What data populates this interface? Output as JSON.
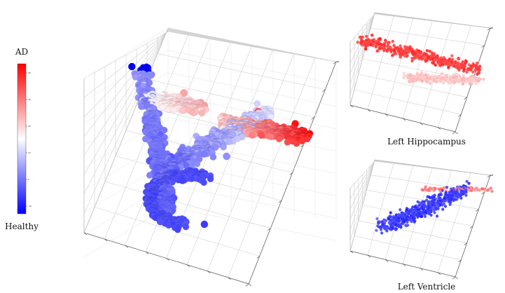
{
  "colorbar": {
    "top_label": "AD",
    "bottom_label": "Healthy",
    "tick_labels": [
      "40",
      "30",
      "20",
      "10",
      "0",
      "-10"
    ],
    "colors": {
      "high": "#ff0000",
      "mid": "#ffffff",
      "low": "#0000ff"
    }
  },
  "panels": {
    "main": {
      "caption": ""
    },
    "top_right": {
      "caption": "Left Hippocampus"
    },
    "bottom_right": {
      "caption": "Left Ventricle"
    }
  },
  "chart_data": [
    {
      "type": "scatter",
      "projection": "3d",
      "title": "",
      "grid": true,
      "colormap": "bwr",
      "value_range": [
        -15,
        45
      ],
      "series": [
        {
          "region": "curved cluster",
          "points": [
            {
              "x": 0.05,
              "y": 0.0,
              "z": 0.95,
              "value": -15
            },
            {
              "x": 0.1,
              "y": 0.05,
              "z": 0.85,
              "value": 8
            },
            {
              "x": 0.2,
              "y": 0.08,
              "z": 0.8,
              "value": 20
            },
            {
              "x": 0.3,
              "y": 0.1,
              "z": 0.82,
              "value": 26
            },
            {
              "x": 0.1,
              "y": 0.1,
              "z": 0.6,
              "value": -2
            },
            {
              "x": 0.1,
              "y": 0.15,
              "z": 0.4,
              "value": -5
            },
            {
              "x": 0.2,
              "y": 0.25,
              "z": 0.2,
              "value": -6
            },
            {
              "x": 0.35,
              "y": 0.3,
              "z": 0.05,
              "value": -8
            },
            {
              "x": 0.5,
              "y": 0.2,
              "z": 0.45,
              "value": 2
            },
            {
              "x": 0.7,
              "y": 0.1,
              "z": 0.7,
              "value": 34
            },
            {
              "x": 0.9,
              "y": 0.1,
              "z": 0.62,
              "value": 43
            }
          ]
        }
      ]
    },
    {
      "type": "scatter",
      "projection": "3d",
      "title": "Left Hippocampus",
      "grid": true,
      "colormap": "bwr",
      "series": [
        {
          "region": "upper band",
          "mean_value": 38
        },
        {
          "region": "lower band",
          "mean_value": 22
        }
      ]
    },
    {
      "type": "scatter",
      "projection": "3d",
      "title": "Left Ventricle",
      "grid": true,
      "colormap": "bwr",
      "series": [
        {
          "region": "body",
          "mean_value": -8
        },
        {
          "region": "upper edge",
          "mean_value": 30
        }
      ]
    }
  ]
}
